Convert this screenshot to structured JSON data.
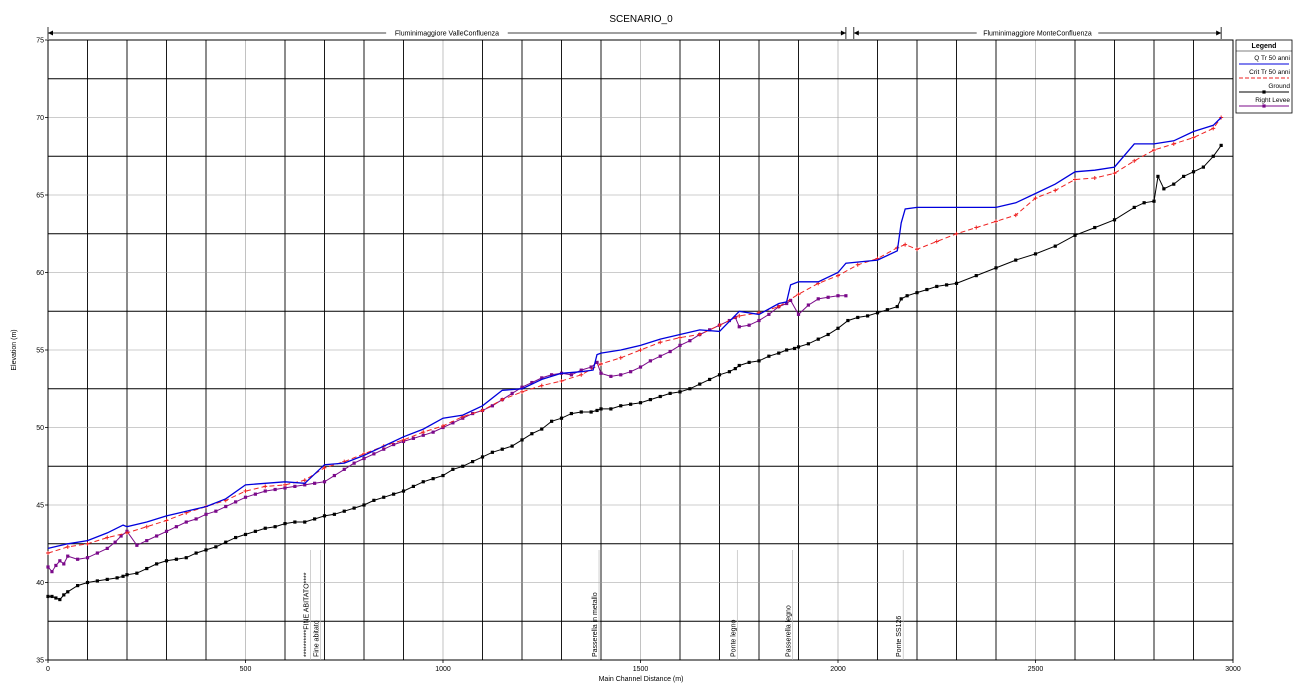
{
  "chart_data": {
    "type": "line",
    "title": "SCENARIO_0",
    "xlabel": "Main Channel Distance (m)",
    "ylabel": "Elevation (m)",
    "xlim": [
      0,
      3000
    ],
    "ylim": [
      35,
      75
    ],
    "xticks": [
      0,
      500,
      1000,
      1500,
      2000,
      2500,
      3000
    ],
    "yticks": [
      35,
      40,
      45,
      50,
      55,
      60,
      65,
      70,
      75
    ],
    "grid": true,
    "legend_position": "top-right",
    "legend_title": "Legend",
    "reaches": [
      {
        "name": "Fluminimaggiore ValleConfluenza",
        "x_start": 0,
        "x_end": 2020
      },
      {
        "name": "Fluminimaggiore MonteConfluenza",
        "x_start": 2040,
        "x_end": 2970
      }
    ],
    "annotations": [
      {
        "x": 665,
        "text": "**********FINE ABITATO****"
      },
      {
        "x": 690,
        "text": "Fine abitato"
      },
      {
        "x": 1395,
        "text": "Passerella in metallo"
      },
      {
        "x": 1745,
        "text": "Ponte legno"
      },
      {
        "x": 1885,
        "text": "Passerella legno"
      },
      {
        "x": 2165,
        "text": "Ponte SS126"
      }
    ],
    "series": [
      {
        "name": "Q Tr 50 anni",
        "color": "#0000dd",
        "style": "solid",
        "x": [
          0,
          50,
          100,
          150,
          190,
          200,
          250,
          300,
          350,
          400,
          450,
          500,
          550,
          600,
          650,
          700,
          750,
          800,
          850,
          900,
          950,
          1000,
          1050,
          1100,
          1150,
          1200,
          1250,
          1300,
          1350,
          1380,
          1390,
          1400,
          1450,
          1500,
          1550,
          1600,
          1650,
          1700,
          1750,
          1800,
          1850,
          1870,
          1880,
          1900,
          1950,
          2000,
          2020,
          2100,
          2150,
          2160,
          2170,
          2200,
          2300,
          2400,
          2450,
          2500,
          2550,
          2600,
          2650,
          2700,
          2750,
          2800,
          2850,
          2900,
          2950,
          2970
        ],
        "y": [
          42.2,
          42.5,
          42.7,
          43.2,
          43.7,
          43.6,
          43.9,
          44.3,
          44.6,
          44.9,
          45.4,
          46.3,
          46.4,
          46.5,
          46.4,
          47.6,
          47.7,
          48.2,
          48.8,
          49.4,
          49.9,
          50.6,
          50.8,
          51.4,
          52.4,
          52.5,
          53.1,
          53.5,
          53.6,
          53.7,
          54.7,
          54.8,
          55.0,
          55.3,
          55.7,
          56.0,
          56.3,
          56.2,
          57.5,
          57.3,
          58.0,
          58.1,
          59.2,
          59.4,
          59.4,
          60.0,
          60.6,
          60.8,
          61.4,
          63.2,
          64.1,
          64.2,
          64.2,
          64.2,
          64.5,
          65.1,
          65.7,
          66.5,
          66.6,
          66.8,
          68.3,
          68.3,
          68.5,
          69.1,
          69.5,
          70.0
        ]
      },
      {
        "name": "Crit Tr 50 anni",
        "color": "#ee2222",
        "style": "dashed",
        "x": [
          0,
          50,
          100,
          150,
          200,
          250,
          300,
          350,
          400,
          450,
          500,
          550,
          600,
          650,
          700,
          750,
          800,
          850,
          900,
          950,
          1000,
          1050,
          1100,
          1150,
          1200,
          1250,
          1300,
          1350,
          1400,
          1450,
          1500,
          1550,
          1600,
          1650,
          1700,
          1750,
          1800,
          1850,
          1900,
          1950,
          2000,
          2050,
          2100,
          2150,
          2170,
          2200,
          2250,
          2300,
          2350,
          2400,
          2450,
          2500,
          2550,
          2600,
          2650,
          2700,
          2750,
          2800,
          2850,
          2900,
          2950,
          2970
        ],
        "y": [
          41.9,
          42.3,
          42.5,
          42.9,
          43.2,
          43.6,
          44.0,
          44.5,
          44.9,
          45.3,
          45.9,
          46.2,
          46.3,
          46.6,
          47.4,
          47.8,
          48.3,
          48.8,
          49.2,
          49.7,
          50.1,
          50.7,
          51.1,
          51.8,
          52.3,
          52.7,
          53.0,
          53.4,
          54.1,
          54.5,
          55.0,
          55.5,
          55.8,
          56.0,
          56.6,
          57.2,
          57.4,
          57.8,
          58.6,
          59.3,
          59.8,
          60.5,
          60.9,
          61.6,
          61.8,
          61.5,
          62.0,
          62.5,
          62.9,
          63.3,
          63.7,
          64.8,
          65.3,
          66.0,
          66.1,
          66.4,
          67.2,
          67.9,
          68.3,
          68.7,
          69.3,
          70.0
        ]
      },
      {
        "name": "Ground",
        "color": "#000000",
        "style": "solid",
        "x": [
          0,
          10,
          20,
          30,
          40,
          50,
          75,
          100,
          125,
          150,
          175,
          190,
          200,
          225,
          250,
          275,
          300,
          325,
          350,
          375,
          400,
          425,
          450,
          475,
          500,
          525,
          550,
          575,
          600,
          625,
          650,
          675,
          700,
          725,
          750,
          775,
          800,
          825,
          850,
          875,
          900,
          925,
          950,
          975,
          1000,
          1025,
          1050,
          1075,
          1100,
          1125,
          1150,
          1175,
          1200,
          1225,
          1250,
          1275,
          1300,
          1325,
          1350,
          1375,
          1390,
          1400,
          1425,
          1450,
          1475,
          1500,
          1525,
          1550,
          1575,
          1600,
          1625,
          1650,
          1675,
          1700,
          1725,
          1740,
          1750,
          1775,
          1800,
          1825,
          1850,
          1870,
          1890,
          1900,
          1925,
          1950,
          1975,
          2000,
          2025,
          2050,
          2075,
          2100,
          2125,
          2150,
          2160,
          2175,
          2200,
          2225,
          2250,
          2275,
          2300,
          2350,
          2400,
          2450,
          2500,
          2550,
          2600,
          2650,
          2700,
          2750,
          2775,
          2800,
          2810,
          2825,
          2850,
          2875,
          2900,
          2925,
          2950,
          2970
        ],
        "y": [
          39.1,
          39.1,
          39.0,
          38.9,
          39.2,
          39.4,
          39.8,
          40.0,
          40.1,
          40.2,
          40.3,
          40.4,
          40.5,
          40.6,
          40.9,
          41.2,
          41.4,
          41.5,
          41.6,
          41.9,
          42.1,
          42.3,
          42.6,
          42.9,
          43.1,
          43.3,
          43.5,
          43.6,
          43.8,
          43.9,
          43.9,
          44.1,
          44.3,
          44.4,
          44.6,
          44.8,
          45.0,
          45.3,
          45.5,
          45.7,
          45.9,
          46.2,
          46.5,
          46.7,
          46.9,
          47.3,
          47.5,
          47.8,
          48.1,
          48.4,
          48.6,
          48.8,
          49.2,
          49.6,
          49.9,
          50.4,
          50.6,
          50.9,
          51.0,
          51.0,
          51.1,
          51.2,
          51.2,
          51.4,
          51.5,
          51.6,
          51.8,
          52.0,
          52.2,
          52.3,
          52.5,
          52.8,
          53.1,
          53.4,
          53.6,
          53.8,
          54.0,
          54.2,
          54.3,
          54.6,
          54.8,
          55.0,
          55.1,
          55.2,
          55.4,
          55.7,
          56.0,
          56.4,
          56.9,
          57.1,
          57.2,
          57.4,
          57.6,
          57.8,
          58.3,
          58.5,
          58.7,
          58.9,
          59.1,
          59.2,
          59.3,
          59.8,
          60.3,
          60.8,
          61.2,
          61.7,
          62.4,
          62.9,
          63.4,
          64.2,
          64.5,
          64.6,
          66.2,
          65.4,
          65.7,
          66.2,
          66.5,
          66.8,
          67.5,
          68.2
        ]
      },
      {
        "name": "Right Levee",
        "color": "#7b0a8a",
        "style": "solid",
        "x": [
          0,
          10,
          20,
          30,
          40,
          50,
          75,
          100,
          125,
          150,
          170,
          185,
          200,
          225,
          250,
          275,
          300,
          325,
          350,
          375,
          400,
          425,
          450,
          475,
          500,
          525,
          550,
          575,
          600,
          625,
          650,
          675,
          700,
          725,
          750,
          775,
          800,
          825,
          850,
          875,
          900,
          925,
          950,
          975,
          1000,
          1025,
          1050,
          1075,
          1100,
          1125,
          1150,
          1175,
          1200,
          1225,
          1250,
          1275,
          1300,
          1325,
          1350,
          1375,
          1390,
          1400,
          1425,
          1450,
          1475,
          1500,
          1525,
          1550,
          1575,
          1600,
          1625,
          1650,
          1675,
          1700,
          1725,
          1740,
          1750,
          1775,
          1800,
          1825,
          1850,
          1870,
          1880,
          1900,
          1925,
          1950,
          1975,
          2000,
          2020
        ],
        "y": [
          41.0,
          40.7,
          41.1,
          41.4,
          41.2,
          41.7,
          41.5,
          41.6,
          41.9,
          42.2,
          42.6,
          43.0,
          43.3,
          42.4,
          42.7,
          43.0,
          43.3,
          43.6,
          43.9,
          44.1,
          44.4,
          44.6,
          44.9,
          45.2,
          45.5,
          45.7,
          45.9,
          46.0,
          46.1,
          46.2,
          46.3,
          46.4,
          46.5,
          46.9,
          47.3,
          47.7,
          48.0,
          48.3,
          48.6,
          48.9,
          49.1,
          49.3,
          49.5,
          49.7,
          50.0,
          50.3,
          50.6,
          50.9,
          51.1,
          51.4,
          51.8,
          52.2,
          52.6,
          52.9,
          53.2,
          53.4,
          53.5,
          53.4,
          53.7,
          53.9,
          54.2,
          53.5,
          53.3,
          53.4,
          53.6,
          53.9,
          54.3,
          54.6,
          54.9,
          55.3,
          55.6,
          56.0,
          56.3,
          56.6,
          56.9,
          57.1,
          56.5,
          56.6,
          56.9,
          57.3,
          57.8,
          58.0,
          58.2,
          57.3,
          57.9,
          58.3,
          58.4,
          58.5,
          58.5
        ]
      }
    ]
  }
}
